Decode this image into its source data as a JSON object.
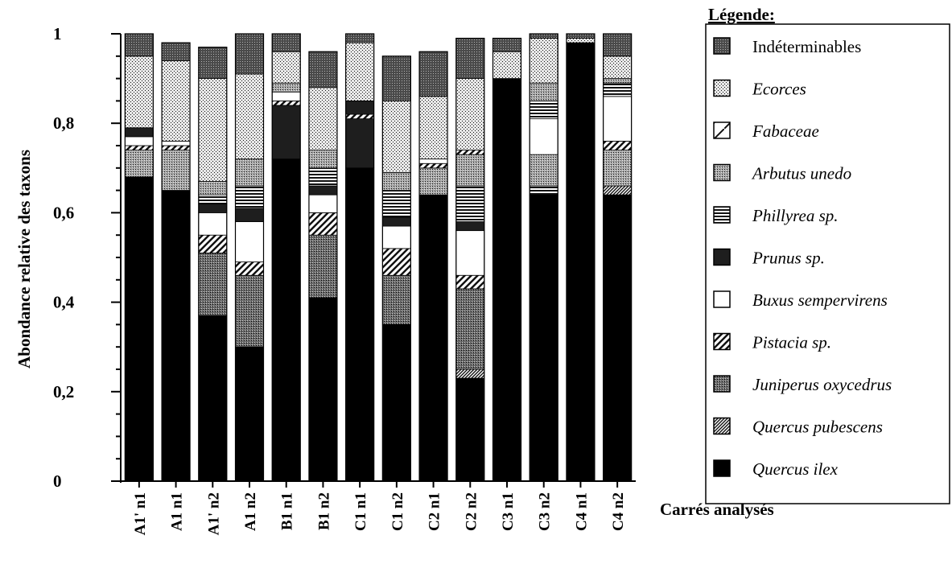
{
  "chart_data": {
    "type": "bar",
    "stacked": true,
    "ylabel": "Abondance relative des taxons",
    "xlabel": "Carrés analysés",
    "ylim": [
      0,
      1
    ],
    "yticks": [
      {
        "value": 0,
        "label": "0"
      },
      {
        "value": 0.2,
        "label": "0,2"
      },
      {
        "value": 0.4,
        "label": "0,4"
      },
      {
        "value": 0.6,
        "label": "0,6"
      },
      {
        "value": 0.8,
        "label": "0,8"
      },
      {
        "value": 1,
        "label": "1"
      }
    ],
    "categories": [
      "A1' n1",
      "A1 n1",
      "A1' n2",
      "A1 n2",
      "B1 n1",
      "B1 n2",
      "C1 n1",
      "C1 n2",
      "C2 n1",
      "C2 n2",
      "C3 n1",
      "C3 n2",
      "C4 n1",
      "C4 n2"
    ],
    "legend": {
      "title": "Légende:",
      "position": "right"
    },
    "series": [
      {
        "name": "Quercus ilex",
        "pattern": "solid",
        "values": [
          0.68,
          0.65,
          0.37,
          0.3,
          0.72,
          0.41,
          0.7,
          0.35,
          0.64,
          0.23,
          0.9,
          0.64,
          0.98,
          0.64
        ]
      },
      {
        "name": "Quercus pubescens",
        "pattern": "diag-fine",
        "values": [
          0.0,
          0.0,
          0.0,
          0.0,
          0.0,
          0.0,
          0.0,
          0.0,
          0.0,
          0.02,
          0.0,
          0.0,
          0.0,
          0.02
        ]
      },
      {
        "name": "Juniperus oxycedrus",
        "pattern": "dots-dense",
        "values": [
          0.0,
          0.0,
          0.14,
          0.16,
          0.0,
          0.14,
          0.0,
          0.11,
          0.0,
          0.18,
          0.0,
          0.0,
          0.0,
          0.0
        ]
      },
      {
        "name": "Pistacia sp.",
        "pattern": "diag-wide",
        "values": [
          0.0,
          0.0,
          0.04,
          0.03,
          0.0,
          0.05,
          0.0,
          0.06,
          0.0,
          0.03,
          0.0,
          0.0,
          0.0,
          0.0
        ]
      },
      {
        "name": "Buxus sempervirens",
        "pattern": "white",
        "values": [
          0.0,
          0.0,
          0.05,
          0.09,
          0.0,
          0.04,
          0.0,
          0.05,
          0.0,
          0.1,
          0.0,
          0.0,
          0.0,
          0.0
        ]
      },
      {
        "name": "Prunus sp.",
        "pattern": "dark",
        "values": [
          0.0,
          0.0,
          0.02,
          0.03,
          0.12,
          0.02,
          0.11,
          0.02,
          0.0,
          0.02,
          0.0,
          0.0,
          0.0,
          0.0
        ]
      },
      {
        "name": "Phillyrea sp.",
        "pattern": "hlines",
        "values": [
          0.0,
          0.0,
          0.02,
          0.05,
          0.0,
          0.04,
          0.0,
          0.06,
          0.0,
          0.08,
          0.0,
          0.02,
          0.0,
          0.0
        ]
      },
      {
        "name": "Arbutus unedo",
        "pattern": "dots-medium",
        "values": [
          0.06,
          0.09,
          0.03,
          0.06,
          0.0,
          0.04,
          0.0,
          0.04,
          0.06,
          0.07,
          0.0,
          0.07,
          0.0,
          0.08
        ]
      },
      {
        "name": "Fabaceae",
        "pattern": "diag-wide",
        "values": [
          0.01,
          0.01,
          0.0,
          0.0,
          0.01,
          0.0,
          0.01,
          0.0,
          0.01,
          0.01,
          0.0,
          0.0,
          0.0,
          0.02
        ]
      },
      {
        "name": "Buxus sempervirens",
        "pattern": "white",
        "values": [
          0.02,
          0.01,
          0.0,
          0.0,
          0.02,
          0.0,
          0.0,
          0.0,
          0.01,
          0.0,
          0.0,
          0.08,
          0.0,
          0.1
        ]
      },
      {
        "name": "Phillyrea sp.",
        "pattern": "hlines",
        "values": [
          0.0,
          0.0,
          0.0,
          0.0,
          0.0,
          0.0,
          0.0,
          0.0,
          0.0,
          0.0,
          0.0,
          0.04,
          0.0,
          0.03
        ]
      },
      {
        "name": "Prunus sp.",
        "pattern": "dark",
        "values": [
          0.02,
          0.0,
          0.0,
          0.0,
          0.0,
          0.0,
          0.03,
          0.0,
          0.0,
          0.0,
          0.0,
          0.0,
          0.0,
          0.0
        ]
      },
      {
        "name": "Arbutus unedo",
        "pattern": "dots-medium",
        "values": [
          0.0,
          0.0,
          0.0,
          0.0,
          0.02,
          0.0,
          0.0,
          0.0,
          0.0,
          0.0,
          0.0,
          0.04,
          0.0,
          0.01
        ]
      },
      {
        "name": "Ecorces",
        "pattern": "dots-light",
        "values": [
          0.16,
          0.18,
          0.23,
          0.19,
          0.07,
          0.14,
          0.13,
          0.16,
          0.14,
          0.16,
          0.06,
          0.1,
          0.01,
          0.05
        ]
      },
      {
        "name": "Indéterminables",
        "pattern": "dots-dark",
        "values": [
          0.05,
          0.04,
          0.07,
          0.09,
          0.04,
          0.08,
          0.02,
          0.1,
          0.1,
          0.09,
          0.03,
          0.01,
          0.01,
          0.05
        ]
      }
    ],
    "legend_entries": [
      {
        "name": "Indéterminables",
        "pattern": "dots-dark",
        "italic": false
      },
      {
        "name": "Ecorces",
        "pattern": "dots-light",
        "italic": true
      },
      {
        "name": "Fabaceae",
        "pattern": "diag-open",
        "italic": true
      },
      {
        "name": "Arbutus unedo",
        "pattern": "dots-medium",
        "italic": true
      },
      {
        "name": "Phillyrea sp.",
        "pattern": "hlines",
        "italic": true
      },
      {
        "name": "Prunus sp.",
        "pattern": "dark",
        "italic": true
      },
      {
        "name": "Buxus sempervirens",
        "pattern": "white",
        "italic": true
      },
      {
        "name": "Pistacia sp.",
        "pattern": "diag-wide",
        "italic": true
      },
      {
        "name": "Juniperus oxycedrus",
        "pattern": "dots-dense",
        "italic": true
      },
      {
        "name": "Quercus pubescens",
        "pattern": "diag-fine",
        "italic": true
      },
      {
        "name": "Quercus ilex",
        "pattern": "solid",
        "italic": true
      }
    ]
  }
}
